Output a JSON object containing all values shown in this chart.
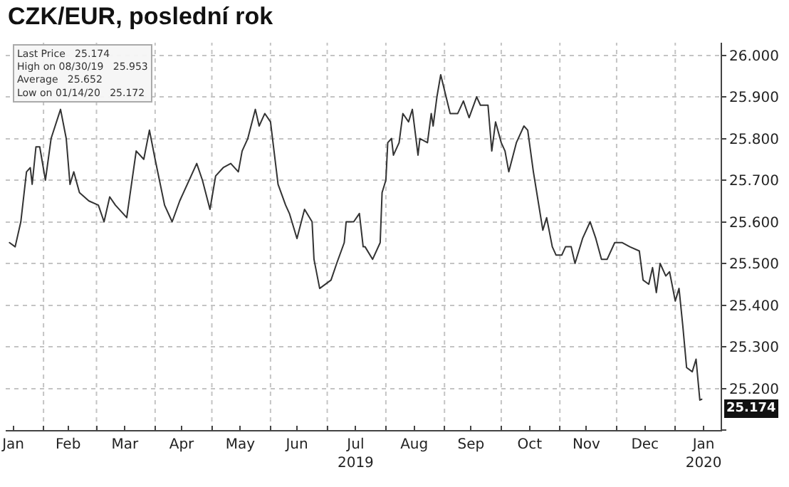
{
  "chart_data": {
    "type": "line",
    "title": "CZK/EUR, poslední rok",
    "x": [
      "2019-01-14",
      "2019-01-17",
      "2019-01-20",
      "2019-01-23",
      "2019-01-25",
      "2019-01-26",
      "2019-01-28",
      "2019-01-30",
      "2019-02-02",
      "2019-02-05",
      "2019-02-10",
      "2019-02-13",
      "2019-02-15",
      "2019-02-17",
      "2019-02-20",
      "2019-02-25",
      "2019-03-02",
      "2019-03-05",
      "2019-03-08",
      "2019-03-11",
      "2019-03-17",
      "2019-03-22",
      "2019-03-26",
      "2019-03-29",
      "2019-04-01",
      "2019-04-06",
      "2019-04-10",
      "2019-04-14",
      "2019-04-19",
      "2019-04-23",
      "2019-04-26",
      "2019-04-30",
      "2019-05-03",
      "2019-05-07",
      "2019-05-11",
      "2019-05-15",
      "2019-05-17",
      "2019-05-20",
      "2019-05-24",
      "2019-05-26",
      "2019-05-29",
      "2019-06-01",
      "2019-06-05",
      "2019-06-09",
      "2019-06-11",
      "2019-06-15",
      "2019-06-19",
      "2019-06-23",
      "2019-06-24",
      "2019-06-27",
      "2019-07-03",
      "2019-07-06",
      "2019-07-10",
      "2019-07-11",
      "2019-07-15",
      "2019-07-18",
      "2019-07-20",
      "2019-07-21",
      "2019-07-25",
      "2019-07-29",
      "2019-07-30",
      "2019-08-01",
      "2019-08-02",
      "2019-08-04",
      "2019-08-05",
      "2019-08-08",
      "2019-08-10",
      "2019-08-13",
      "2019-08-15",
      "2019-08-18",
      "2019-08-19",
      "2019-08-23",
      "2019-08-25",
      "2019-08-26",
      "2019-08-28",
      "2019-08-30",
      "2019-09-04",
      "2019-09-08",
      "2019-09-11",
      "2019-09-14",
      "2019-09-18",
      "2019-09-20",
      "2019-09-24",
      "2019-09-26",
      "2019-09-28",
      "2019-10-01",
      "2019-10-03",
      "2019-10-05",
      "2019-10-09",
      "2019-10-13",
      "2019-10-15",
      "2019-10-18",
      "2019-10-23",
      "2019-10-25",
      "2019-10-28",
      "2019-10-30",
      "2019-11-02",
      "2019-11-04",
      "2019-11-07",
      "2019-11-09",
      "2019-11-13",
      "2019-11-17",
      "2019-11-20",
      "2019-11-23",
      "2019-11-26",
      "2019-11-30",
      "2019-12-04",
      "2019-12-08",
      "2019-12-13",
      "2019-12-15",
      "2019-12-18",
      "2019-12-20",
      "2019-12-22",
      "2019-12-24",
      "2019-12-27",
      "2019-12-29",
      "2020-01-01",
      "2020-01-03",
      "2020-01-05",
      "2020-01-07",
      "2020-01-10",
      "2020-01-12",
      "2020-01-14",
      "2020-01-15"
    ],
    "series": [
      {
        "color": "#333333",
        "values": [
          25.55,
          25.54,
          25.6,
          25.72,
          25.73,
          25.69,
          25.78,
          25.78,
          25.7,
          25.8,
          25.87,
          25.8,
          25.69,
          25.72,
          25.67,
          25.65,
          25.64,
          25.6,
          25.66,
          25.64,
          25.61,
          25.77,
          25.75,
          25.82,
          25.75,
          25.64,
          25.6,
          25.65,
          25.7,
          25.74,
          25.7,
          25.63,
          25.71,
          25.73,
          25.74,
          25.72,
          25.77,
          25.8,
          25.87,
          25.83,
          25.86,
          25.84,
          25.69,
          25.64,
          25.62,
          25.56,
          25.63,
          25.6,
          25.51,
          25.44,
          25.46,
          25.5,
          25.55,
          25.6,
          25.6,
          25.62,
          25.54,
          25.54,
          25.51,
          25.55,
          25.67,
          25.7,
          25.79,
          25.8,
          25.76,
          25.79,
          25.86,
          25.84,
          25.87,
          25.76,
          25.8,
          25.79,
          25.86,
          25.83,
          25.9,
          25.953,
          25.86,
          25.86,
          25.89,
          25.85,
          25.9,
          25.88,
          25.88,
          25.77,
          25.84,
          25.79,
          25.77,
          25.72,
          25.79,
          25.83,
          25.82,
          25.72,
          25.58,
          25.61,
          25.54,
          25.52,
          25.52,
          25.54,
          25.54,
          25.5,
          25.56,
          25.6,
          25.56,
          25.51,
          25.51,
          25.55,
          25.55,
          25.54,
          25.53,
          25.46,
          25.45,
          25.49,
          25.43,
          25.5,
          25.47,
          25.48,
          25.41,
          25.44,
          25.35,
          25.25,
          25.24,
          25.27,
          25.172,
          25.174
        ]
      }
    ],
    "xlim": [
      "2019-01-12",
      "2020-01-25"
    ],
    "xticks": [
      {
        "value": "2019-01-16",
        "label": "Jan"
      },
      {
        "value": "2019-02-01",
        "label": null
      },
      {
        "value": "2019-02-14",
        "label": "Feb"
      },
      {
        "value": "2019-03-01",
        "label": null
      },
      {
        "value": "2019-03-16",
        "label": "Mar"
      },
      {
        "value": "2019-04-01",
        "label": null
      },
      {
        "value": "2019-04-15",
        "label": "Apr"
      },
      {
        "value": "2019-05-01",
        "label": null
      },
      {
        "value": "2019-05-16",
        "label": "May"
      },
      {
        "value": "2019-06-01",
        "label": null
      },
      {
        "value": "2019-06-15",
        "label": "Jun"
      },
      {
        "value": "2019-07-01",
        "label": null
      },
      {
        "value": "2019-07-16",
        "label": "Jul\n2019"
      },
      {
        "value": "2019-08-01",
        "label": null
      },
      {
        "value": "2019-08-16",
        "label": "Aug"
      },
      {
        "value": "2019-09-01",
        "label": null
      },
      {
        "value": "2019-09-15",
        "label": "Sep"
      },
      {
        "value": "2019-10-01",
        "label": null
      },
      {
        "value": "2019-10-16",
        "label": "Oct"
      },
      {
        "value": "2019-11-01",
        "label": null
      },
      {
        "value": "2019-11-15",
        "label": "Nov"
      },
      {
        "value": "2019-12-01",
        "label": null
      },
      {
        "value": "2019-12-16",
        "label": "Dec"
      },
      {
        "value": "2020-01-01",
        "label": null
      },
      {
        "value": "2020-01-16",
        "label": "Jan\n2020"
      }
    ],
    "ylim": [
      25.1,
      26.03
    ],
    "yticks": [
      {
        "value": 25.1,
        "label": null
      },
      {
        "value": 25.2,
        "label": "25.200"
      },
      {
        "value": 25.3,
        "label": "25.300"
      },
      {
        "value": 25.4,
        "label": "25.400"
      },
      {
        "value": 25.5,
        "label": "25.500"
      },
      {
        "value": 25.6,
        "label": "25.600"
      },
      {
        "value": 25.7,
        "label": "25.700"
      },
      {
        "value": 25.8,
        "label": "25.800"
      },
      {
        "value": 25.9,
        "label": "25.900"
      },
      {
        "value": 26.0,
        "label": "26.000"
      }
    ],
    "grid": true,
    "marker": "none",
    "line_style": "solid",
    "annotations": [
      "Last Price   25.174",
      "High on 08/30/19   25.953",
      "Average   25.652",
      "Low on 01/14/20   25.172",
      "25.174"
    ]
  }
}
